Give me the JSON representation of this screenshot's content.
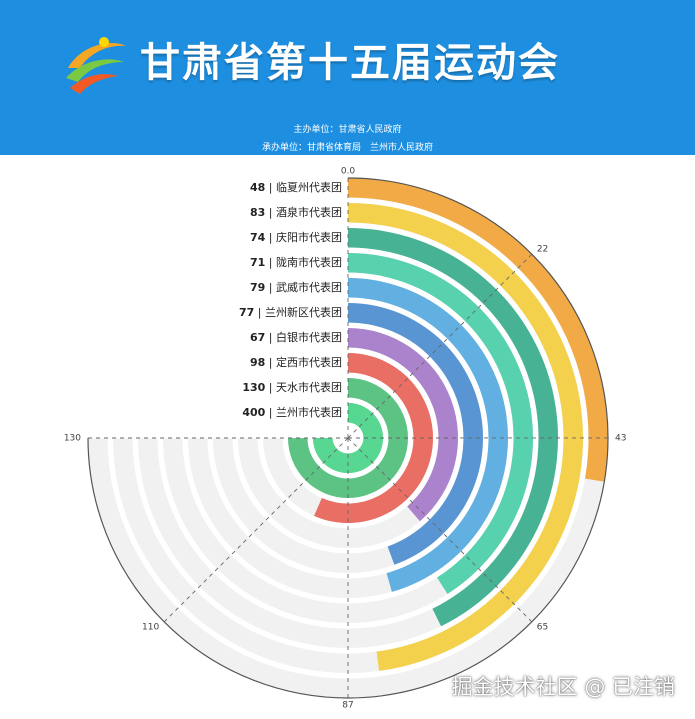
{
  "banner": {
    "title": "甘肃省第十五届运动会",
    "organizer": "主办单位：甘肃省人民政府",
    "undertaker": "承办单位：甘肃省体育局　兰州市人民政府",
    "bg_color": "#1e8fe0"
  },
  "watermark": "掘金技术社区 @ 已注销",
  "chart_data": {
    "type": "polar-bar",
    "categories": [
      "临夏州代表团",
      "酒泉市代表团",
      "庆阳市代表团",
      "陇南市代表团",
      "武威市代表团",
      "兰州新区代表团",
      "白银市代表团",
      "定西市代表团",
      "天水市代表团",
      "兰州市代表团"
    ],
    "values": [
      48,
      83,
      74,
      71,
      79,
      77,
      67,
      98,
      130,
      400
    ],
    "angle_axis": {
      "min": 0,
      "max": 130
    },
    "angle_ticks": [
      {
        "label": "0.0",
        "value": 0
      },
      {
        "label": "22",
        "value": 21.67
      },
      {
        "label": "43",
        "value": 43.33
      },
      {
        "label": "65",
        "value": 65
      },
      {
        "label": "87",
        "value": 86.67
      },
      {
        "label": "110",
        "value": 108.33
      },
      {
        "label": "130",
        "value": 130
      }
    ],
    "colors": [
      "#f0a53b",
      "#f2cf42",
      "#3daf8e",
      "#4fcfaa",
      "#5aabe0",
      "#4f8fd0",
      "#a77cc9",
      "#e8665c",
      "#53c07d",
      "#55d690"
    ]
  }
}
